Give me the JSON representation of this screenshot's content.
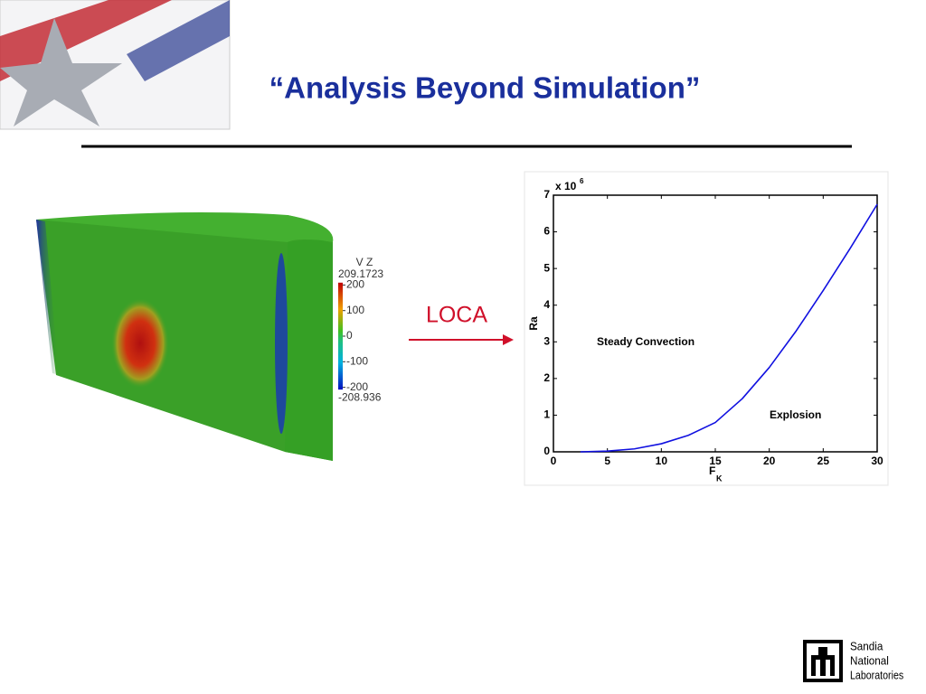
{
  "title": "“Analysis Beyond Simulation”",
  "arrow_label": "LOCA",
  "colorbar": {
    "title": "V Z",
    "lim": [
      -208.936,
      209.1723
    ],
    "ticks": [
      200,
      100,
      0,
      -100,
      -200
    ]
  },
  "logo": {
    "lines": [
      "Sandia",
      "National",
      "Laboratories"
    ]
  },
  "chart_data": {
    "type": "line",
    "xlabel": "F",
    "xlabel_sub": "K",
    "ylabel": "Ra",
    "y_multiplier": "x 10",
    "y_multiplier_exp": "6",
    "annotations": [
      "Steady Convection",
      "Explosion"
    ],
    "x": [
      2.5,
      5,
      7.5,
      10,
      12.5,
      15,
      17.5,
      20,
      22.5,
      25,
      27.5,
      30
    ],
    "series": [
      {
        "color": "#1010e0",
        "values": [
          0,
          0.02,
          0.08,
          0.22,
          0.45,
          0.8,
          1.45,
          2.3,
          3.3,
          4.4,
          5.55,
          6.75
        ]
      }
    ],
    "xlim": [
      0,
      30
    ],
    "ylim": [
      0,
      7
    ],
    "xticks": [
      0,
      5,
      10,
      15,
      20,
      25,
      30
    ],
    "yticks": [
      0,
      1,
      2,
      3,
      4,
      5,
      6,
      7
    ]
  }
}
